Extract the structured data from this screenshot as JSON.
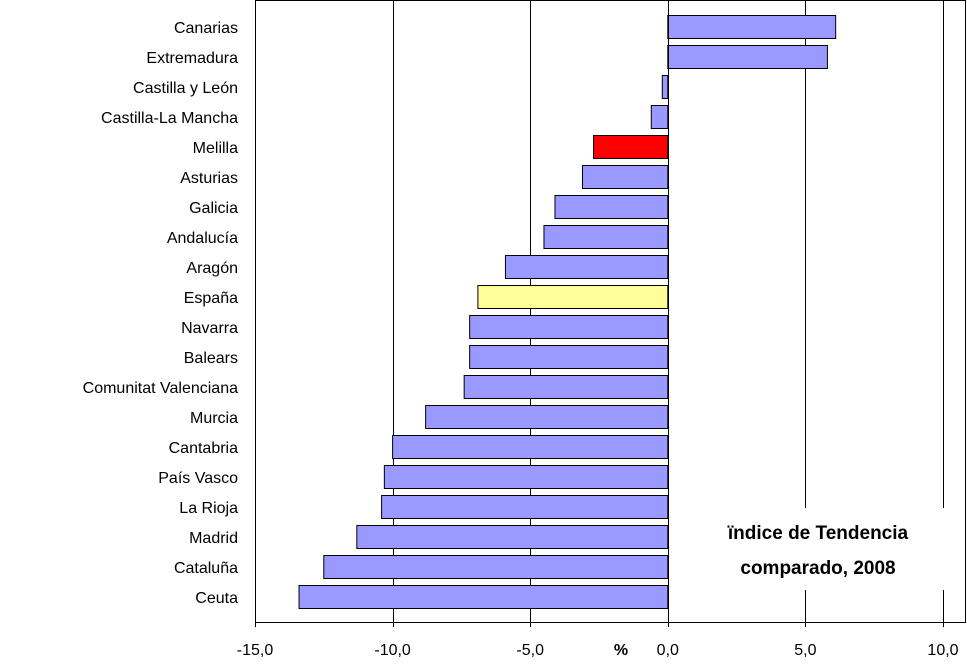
{
  "chart_data": {
    "type": "bar",
    "orientation": "horizontal",
    "categories": [
      "Canarias",
      "Extremadura",
      "Castilla y León",
      "Castilla-La Mancha",
      "Melilla",
      "Asturias ",
      "Galicia",
      "Andalucía",
      "Aragón",
      "España",
      "Navarra",
      "Balears ",
      "Comunitat Valenciana",
      "Murcia ",
      "Cantabria",
      "País Vasco",
      "La Rioja ",
      "Madrid ",
      "Cataluña",
      "Ceuta"
    ],
    "values": [
      6.1,
      5.8,
      -0.2,
      -0.6,
      -2.7,
      -3.1,
      -4.1,
      -4.5,
      -5.9,
      -6.9,
      -7.2,
      -7.2,
      -7.4,
      -8.8,
      -10.0,
      -10.3,
      -10.4,
      -11.3,
      -12.5,
      -13.4
    ],
    "bar_colors": [
      "#9999ff",
      "#9999ff",
      "#9999ff",
      "#9999ff",
      "#ff0000",
      "#9999ff",
      "#9999ff",
      "#9999ff",
      "#9999ff",
      "#ffff99",
      "#9999ff",
      "#9999ff",
      "#9999ff",
      "#9999ff",
      "#9999ff",
      "#9999ff",
      "#9999ff",
      "#9999ff",
      "#9999ff",
      "#9999ff"
    ],
    "xlim": [
      -15,
      10
    ],
    "xticks": [
      -15,
      -10,
      -5,
      0,
      5,
      10
    ],
    "xtick_labels": [
      "-15,0",
      "-10,0",
      "-5,0",
      "0,0",
      "5,0",
      "10,0"
    ],
    "xlabel": "%",
    "grid": "vertical",
    "annotation": [
      "ïndice de Tendencia",
      "comparado, 2008"
    ]
  }
}
